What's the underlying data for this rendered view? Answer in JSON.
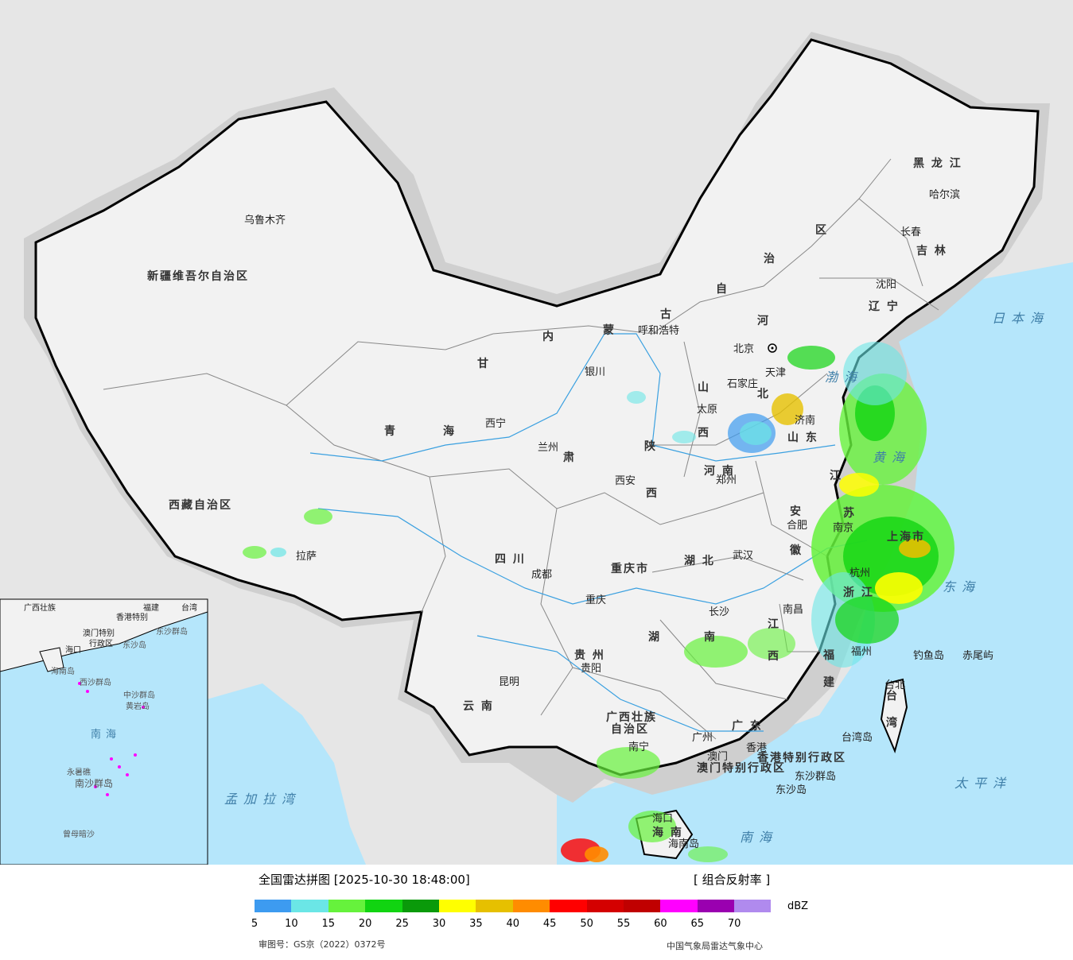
{
  "header": {
    "title": "全国雷达拼图 [2025-10-30 18:48:00]",
    "product": "[ 组合反射率 ]",
    "unit": "dBZ"
  },
  "legend": {
    "colors": [
      "#3d9bf0",
      "#6be6e6",
      "#66f23c",
      "#11d411",
      "#0a9a0a",
      "#ffff00",
      "#e6c000",
      "#ff8c00",
      "#ff0000",
      "#d40000",
      "#c00000",
      "#ff00ff",
      "#9a00b0",
      "#b08aee"
    ],
    "ticks": [
      "5",
      "10",
      "15",
      "20",
      "25",
      "30",
      "35",
      "40",
      "45",
      "50",
      "55",
      "60",
      "65",
      "70"
    ]
  },
  "footer": {
    "approval": "审图号：GS京（2022）0372号",
    "center": "中国气象局雷达气象中心"
  },
  "provinces": [
    {
      "name": "新疆维吾尔自治区"
    },
    {
      "name": "西藏自治区"
    },
    {
      "name": "青"
    },
    {
      "name": "海"
    },
    {
      "name": "甘"
    },
    {
      "name": "肃"
    },
    {
      "name": "内"
    },
    {
      "name": "蒙"
    },
    {
      "name": "古"
    },
    {
      "name": "自"
    },
    {
      "name": "治"
    },
    {
      "name": "区"
    },
    {
      "name": "黑 龙 江"
    },
    {
      "name": "吉 林"
    },
    {
      "name": "辽 宁"
    },
    {
      "name": "河"
    },
    {
      "name": "北"
    },
    {
      "name": "山"
    },
    {
      "name": "西"
    },
    {
      "name": "山 东"
    },
    {
      "name": "河 南"
    },
    {
      "name": "陕"
    },
    {
      "name": "西"
    },
    {
      "name": "江"
    },
    {
      "name": "苏"
    },
    {
      "name": "安"
    },
    {
      "name": "徽"
    },
    {
      "name": "四 川"
    },
    {
      "name": "重庆市"
    },
    {
      "name": "湖 北"
    },
    {
      "name": "湖"
    },
    {
      "name": "南"
    },
    {
      "name": "江"
    },
    {
      "name": "西"
    },
    {
      "name": "浙 江"
    },
    {
      "name": "福"
    },
    {
      "name": "建"
    },
    {
      "name": "贵 州"
    },
    {
      "name": "云 南"
    },
    {
      "name": "广西壮族"
    },
    {
      "name": "自治区"
    },
    {
      "name": "广 东"
    },
    {
      "name": "海 南"
    },
    {
      "name": "台"
    },
    {
      "name": "湾"
    },
    {
      "name": "上海市"
    },
    {
      "name": "香港特别行政区"
    },
    {
      "name": "澳门特别行政区"
    }
  ],
  "cities": [
    {
      "name": "乌鲁木齐"
    },
    {
      "name": "拉萨"
    },
    {
      "name": "西宁"
    },
    {
      "name": "兰州"
    },
    {
      "name": "银川"
    },
    {
      "name": "呼和浩特"
    },
    {
      "name": "北京"
    },
    {
      "name": "天津"
    },
    {
      "name": "石家庄"
    },
    {
      "name": "太原"
    },
    {
      "name": "济南"
    },
    {
      "name": "郑州"
    },
    {
      "name": "西安"
    },
    {
      "name": "成都"
    },
    {
      "name": "重庆"
    },
    {
      "name": "武汉"
    },
    {
      "name": "合肥"
    },
    {
      "name": "南京"
    },
    {
      "name": "杭州"
    },
    {
      "name": "长沙"
    },
    {
      "name": "南昌"
    },
    {
      "name": "福州"
    },
    {
      "name": "贵阳"
    },
    {
      "name": "昆明"
    },
    {
      "name": "南宁"
    },
    {
      "name": "广州"
    },
    {
      "name": "澳门"
    },
    {
      "name": "香港"
    },
    {
      "name": "海口"
    },
    {
      "name": "台北"
    },
    {
      "name": "哈尔滨"
    },
    {
      "name": "长春"
    },
    {
      "name": "沈阳"
    }
  ],
  "seas": [
    {
      "name": "日本海"
    },
    {
      "name": "渤海"
    },
    {
      "name": "黄海"
    },
    {
      "name": "东海"
    },
    {
      "name": "太平洋"
    },
    {
      "name": "南海"
    },
    {
      "name": "孟加拉湾"
    }
  ],
  "islands": [
    {
      "name": "钓鱼岛"
    },
    {
      "name": "赤尾屿"
    },
    {
      "name": "台湾岛"
    },
    {
      "name": "东沙群岛"
    },
    {
      "name": "东沙岛"
    },
    {
      "name": "海南岛"
    }
  ],
  "inset": {
    "labels": [
      "广西壮族",
      "福建",
      "台湾",
      "香港特别",
      "澳门特别",
      "行政区",
      "东沙群岛",
      "东沙岛",
      "海口",
      "海南岛",
      "西沙群岛",
      "中沙群岛",
      "黄岩岛",
      "南海",
      "永暑礁",
      "南沙群岛",
      "曾母暗沙"
    ]
  }
}
